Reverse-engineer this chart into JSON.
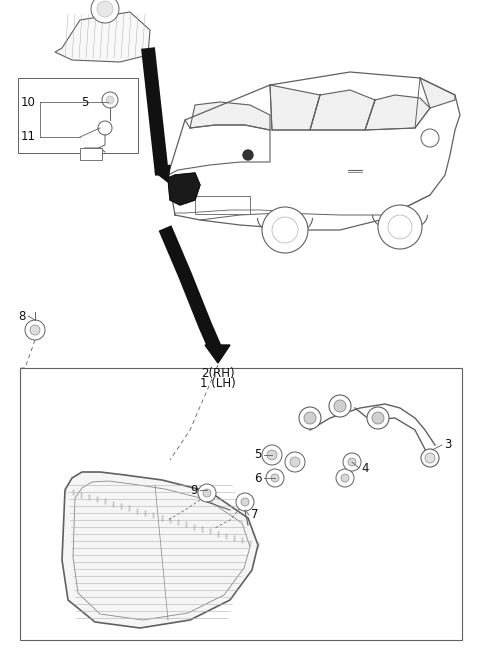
{
  "bg_color": "#ffffff",
  "line_color": "#606060",
  "dark_color": "#111111",
  "light_gray": "#b0b0b0",
  "med_gray": "#888888",
  "fig_width": 4.8,
  "fig_height": 6.51,
  "dpi": 100
}
